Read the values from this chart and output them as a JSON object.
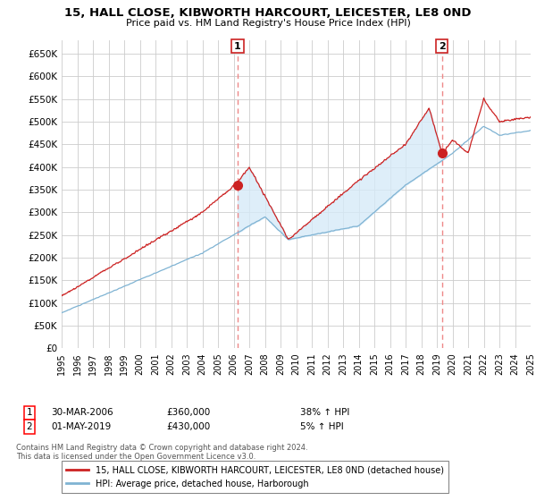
{
  "title": "15, HALL CLOSE, KIBWORTH HARCOURT, LEICESTER, LE8 0ND",
  "subtitle": "Price paid vs. HM Land Registry's House Price Index (HPI)",
  "ylabel_ticks": [
    "£0",
    "£50K",
    "£100K",
    "£150K",
    "£200K",
    "£250K",
    "£300K",
    "£350K",
    "£400K",
    "£450K",
    "£500K",
    "£550K",
    "£600K",
    "£650K"
  ],
  "ytick_values": [
    0,
    50000,
    100000,
    150000,
    200000,
    250000,
    300000,
    350000,
    400000,
    450000,
    500000,
    550000,
    600000,
    650000
  ],
  "xlim": [
    1995,
    2025
  ],
  "ylim": [
    0,
    680000
  ],
  "background_color": "#ffffff",
  "grid_color": "#cccccc",
  "hpi_color": "#7fb3d3",
  "price_color": "#cc2222",
  "fill_color": "#d6eaf8",
  "dashed_line_color": "#ee8888",
  "ann1_x": 2006.25,
  "ann1_y": 360000,
  "ann1_date": "30-MAR-2006",
  "ann1_price": "£360,000",
  "ann1_pct": "38% ↑ HPI",
  "ann2_x": 2019.33,
  "ann2_y": 430000,
  "ann2_date": "01-MAY-2019",
  "ann2_price": "£430,000",
  "ann2_pct": "5% ↑ HPI",
  "legend_line1": "15, HALL CLOSE, KIBWORTH HARCOURT, LEICESTER, LE8 0ND (detached house)",
  "legend_line2": "HPI: Average price, detached house, Harborough",
  "footnote": "Contains HM Land Registry data © Crown copyright and database right 2024.\nThis data is licensed under the Open Government Licence v3.0.",
  "xticks": [
    1995,
    1996,
    1997,
    1998,
    1999,
    2000,
    2001,
    2002,
    2003,
    2004,
    2005,
    2006,
    2007,
    2008,
    2009,
    2010,
    2011,
    2012,
    2013,
    2014,
    2015,
    2016,
    2017,
    2018,
    2019,
    2020,
    2021,
    2022,
    2023,
    2024,
    2025
  ]
}
